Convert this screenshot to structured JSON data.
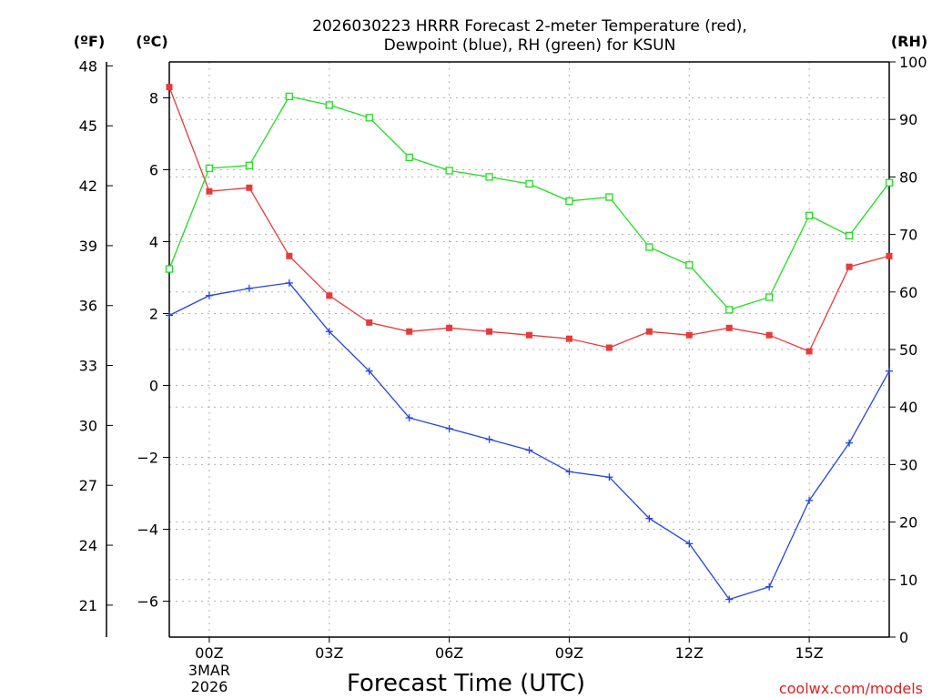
{
  "chart_data": {
    "type": "line",
    "title_line1": "2026030223 HRRR Forecast 2-meter Temperature (red),",
    "title_line2": "Dewpoint (blue), RH (green) for KSUN",
    "xlabel": "Forecast Time (UTC)",
    "credit": "coolwx.com/models",
    "units": {
      "fahrenheit": "(ºF)",
      "celsius": "(ºC)",
      "rh": "(RH)"
    },
    "x_hours": [
      -1,
      0,
      1,
      2,
      3,
      4,
      5,
      6,
      7,
      8,
      9,
      10,
      11,
      12,
      13,
      14,
      15,
      16,
      17
    ],
    "xlim": [
      -1,
      17
    ],
    "x_ticks": [
      {
        "hour": 0,
        "label": "00Z",
        "sub1": "3MAR",
        "sub2": "2026"
      },
      {
        "hour": 3,
        "label": "03Z"
      },
      {
        "hour": 6,
        "label": "06Z"
      },
      {
        "hour": 9,
        "label": "09Z"
      },
      {
        "hour": 12,
        "label": "12Z"
      },
      {
        "hour": 15,
        "label": "15Z"
      }
    ],
    "celsius_axis": {
      "ylim": [
        -7,
        9
      ],
      "ticks": [
        8,
        6,
        4,
        2,
        0,
        -2,
        -4,
        -6
      ],
      "labels": [
        "8",
        "6",
        "4",
        "2",
        "0",
        "−2",
        "−4",
        "−6"
      ]
    },
    "fahrenheit_axis": {
      "ylim": [
        19.4,
        48.2
      ],
      "ticks": [
        48,
        45,
        42,
        39,
        36,
        33,
        30,
        27,
        24,
        21
      ],
      "labels": [
        "48",
        "45",
        "42",
        "39",
        "36",
        "33",
        "30",
        "27",
        "24",
        "21"
      ]
    },
    "rh_axis": {
      "ylim": [
        0,
        100
      ],
      "ticks": [
        0,
        10,
        20,
        30,
        40,
        50,
        60,
        70,
        80,
        90,
        100
      ],
      "labels": [
        "0",
        "10",
        "20",
        "30",
        "40",
        "50",
        "60",
        "70",
        "80",
        "90",
        "100"
      ]
    },
    "series": [
      {
        "name": "Temperature",
        "axis": "celsius",
        "color": "#e83a3a",
        "marker": "filled-square",
        "values": [
          8.3,
          5.4,
          5.5,
          3.6,
          2.5,
          1.75,
          1.5,
          1.6,
          1.5,
          1.4,
          1.3,
          1.05,
          1.5,
          1.4,
          1.6,
          1.4,
          0.95,
          3.3,
          3.6
        ]
      },
      {
        "name": "Dewpoint",
        "axis": "celsius",
        "color": "#2244dd",
        "marker": "plus",
        "values": [
          1.95,
          2.5,
          2.7,
          2.85,
          1.5,
          0.4,
          -0.9,
          -1.2,
          -1.5,
          -1.8,
          -2.4,
          -2.55,
          -3.7,
          -4.4,
          -5.95,
          -5.6,
          -3.2,
          -1.6,
          0.4
        ]
      },
      {
        "name": "RH",
        "axis": "rh",
        "color": "#22dd22",
        "marker": "open-square",
        "values": [
          64,
          81.5,
          82,
          94,
          92.5,
          90.3,
          83.4,
          81.1,
          80,
          78.8,
          75.8,
          76.5,
          67.8,
          64.7,
          56.9,
          59.1,
          73.3,
          69.8,
          79
        ]
      }
    ]
  }
}
